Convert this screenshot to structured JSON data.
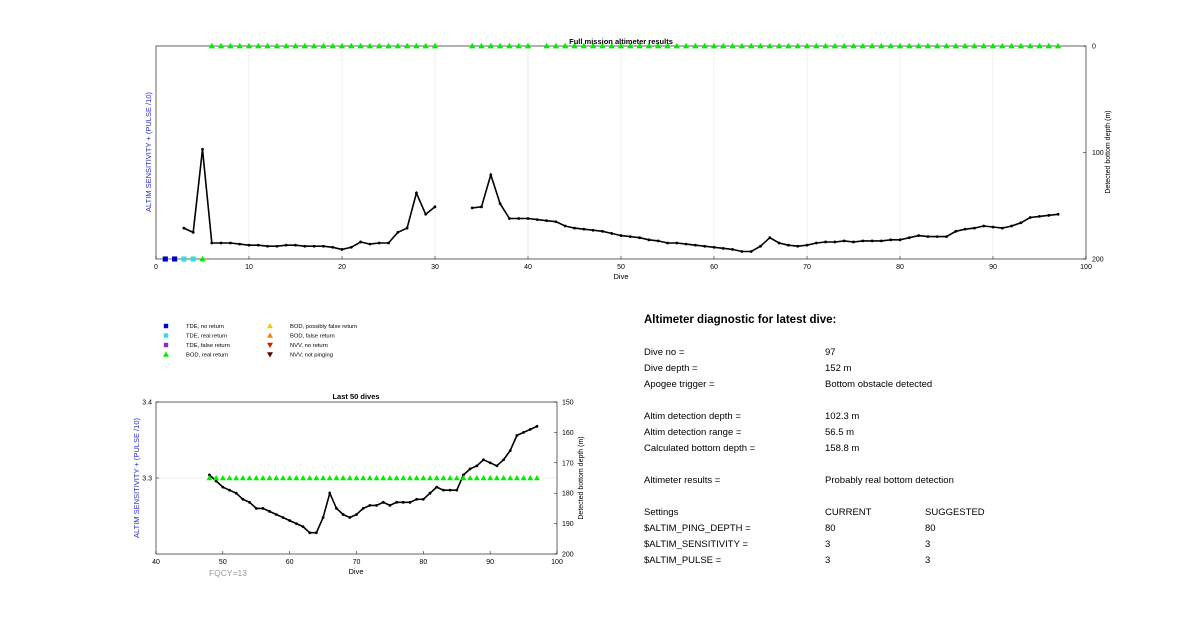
{
  "chart_data": [
    {
      "type": "line",
      "title": "Full mission altimeter results",
      "xlabel": "Dive",
      "ylabel_left": "ALTIM SENSITIVITY + (PULSE /10)",
      "ylabel_right": "Detected bottom depth (m)",
      "xlim": [
        0,
        100
      ],
      "xticks": [
        "0",
        "10",
        "20",
        "30",
        "40",
        "50",
        "60",
        "70",
        "80",
        "90",
        "100"
      ],
      "y_right_lim": [
        0,
        200
      ],
      "y_right_reversed": true,
      "y_right_ticks": [
        "0",
        "100",
        "200"
      ],
      "grid": "x",
      "series": [
        {
          "marker": "line-with-points",
          "axis": "right",
          "color": "#000000",
          "points": [
            [
              3,
              171
            ],
            [
              4,
              175
            ],
            [
              5,
              97
            ],
            [
              6,
              185
            ],
            [
              7,
              185
            ],
            [
              8,
              185
            ],
            [
              9,
              186
            ],
            [
              10,
              187
            ],
            [
              11,
              187
            ],
            [
              12,
              188
            ],
            [
              13,
              188
            ],
            [
              14,
              187
            ],
            [
              15,
              187
            ],
            [
              16,
              188
            ],
            [
              17,
              188
            ],
            [
              18,
              188
            ],
            [
              19,
              189
            ],
            [
              20,
              191
            ],
            [
              21,
              189
            ],
            [
              22,
              184
            ],
            [
              23,
              186
            ],
            [
              24,
              185
            ],
            [
              25,
              185
            ],
            [
              26,
              175
            ],
            [
              27,
              171
            ],
            [
              28,
              138
            ],
            [
              29,
              158
            ],
            [
              30,
              151
            ],
            [
              34,
              152
            ],
            [
              35,
              151
            ],
            [
              36,
              121
            ],
            [
              37,
              148
            ],
            [
              38,
              162
            ],
            [
              39,
              162
            ],
            [
              40,
              162
            ],
            [
              41,
              163
            ],
            [
              42,
              164
            ],
            [
              43,
              165
            ],
            [
              44,
              169
            ],
            [
              45,
              171
            ],
            [
              46,
              172
            ],
            [
              47,
              173
            ],
            [
              48,
              174
            ],
            [
              49,
              176
            ],
            [
              50,
              178
            ],
            [
              51,
              179
            ],
            [
              52,
              180
            ],
            [
              53,
              182
            ],
            [
              54,
              183
            ],
            [
              55,
              185
            ],
            [
              56,
              185
            ],
            [
              57,
              186
            ],
            [
              58,
              187
            ],
            [
              59,
              188
            ],
            [
              60,
              189
            ],
            [
              61,
              190
            ],
            [
              62,
              191
            ],
            [
              63,
              193
            ],
            [
              64,
              193
            ],
            [
              65,
              188
            ],
            [
              66,
              180
            ],
            [
              67,
              185
            ],
            [
              68,
              187
            ],
            [
              69,
              188
            ],
            [
              70,
              187
            ],
            [
              71,
              185
            ],
            [
              72,
              184
            ],
            [
              73,
              184
            ],
            [
              74,
              183
            ],
            [
              75,
              184
            ],
            [
              76,
              183
            ],
            [
              77,
              183
            ],
            [
              78,
              183
            ],
            [
              79,
              182
            ],
            [
              80,
              182
            ],
            [
              81,
              180
            ],
            [
              82,
              178
            ],
            [
              83,
              179
            ],
            [
              84,
              179
            ],
            [
              85,
              179
            ],
            [
              86,
              174
            ],
            [
              87,
              172
            ],
            [
              88,
              171
            ],
            [
              89,
              169
            ],
            [
              90,
              170
            ],
            [
              91,
              171
            ],
            [
              92,
              169
            ],
            [
              93,
              166
            ],
            [
              94,
              161
            ],
            [
              95,
              160
            ],
            [
              96,
              159
            ],
            [
              97,
              158
            ]
          ]
        },
        {
          "name": "BOD, real return",
          "marker": "triangle-up",
          "color": "#00ee00",
          "y_value_right": 0,
          "dives": [
            6,
            7,
            8,
            9,
            10,
            11,
            12,
            13,
            14,
            15,
            16,
            17,
            18,
            19,
            20,
            21,
            22,
            23,
            24,
            25,
            26,
            27,
            28,
            29,
            30,
            34,
            35,
            36,
            37,
            38,
            39,
            40,
            42,
            43,
            44,
            45,
            46,
            47,
            48,
            49,
            50,
            51,
            52,
            53,
            54,
            55,
            56,
            57,
            58,
            59,
            60,
            61,
            62,
            63,
            64,
            65,
            66,
            67,
            68,
            69,
            70,
            71,
            72,
            73,
            74,
            75,
            76,
            77,
            78,
            79,
            80,
            81,
            82,
            83,
            84,
            85,
            86,
            87,
            88,
            89,
            90,
            91,
            92,
            93,
            94,
            95,
            96,
            97
          ]
        },
        {
          "name": "TDE, no return",
          "marker": "square",
          "color": "#0000cc",
          "y_value_right": 200,
          "dives": [
            1,
            2
          ]
        },
        {
          "name": "TDE, real return",
          "marker": "square",
          "color": "#33dddd",
          "y_value_right": 200,
          "dives": [
            3,
            4
          ]
        },
        {
          "name": "BOD, real return",
          "marker": "triangle-up",
          "color": "#00ee00",
          "y_value_right": 200,
          "dives": [
            5
          ]
        }
      ]
    },
    {
      "type": "line",
      "title": "Last 50 dives",
      "xlabel": "Dive",
      "ylabel_left": "ALTIM SENSITIVITY + (PULSE /10)",
      "ylabel_right": "Detected bottom depth (m)",
      "xlim": [
        40,
        100
      ],
      "xticks": [
        "40",
        "50",
        "60",
        "70",
        "80",
        "90",
        "100"
      ],
      "ylim_left": [
        3.2,
        3.4
      ],
      "y_left_ticks": [
        "3.3",
        "3.4"
      ],
      "y_right_lim": [
        150,
        200
      ],
      "y_right_reversed": true,
      "y_right_ticks": [
        "150",
        "160",
        "170",
        "180",
        "190",
        "200"
      ],
      "annotation": "FQCY=13",
      "series": [
        {
          "marker": "line-with-points",
          "axis": "right",
          "color": "#000000",
          "points": [
            [
              48,
              174
            ],
            [
              49,
              176
            ],
            [
              50,
              178
            ],
            [
              51,
              179
            ],
            [
              52,
              180
            ],
            [
              53,
              182
            ],
            [
              54,
              183
            ],
            [
              55,
              185
            ],
            [
              56,
              185
            ],
            [
              57,
              186
            ],
            [
              58,
              187
            ],
            [
              59,
              188
            ],
            [
              60,
              189
            ],
            [
              61,
              190
            ],
            [
              62,
              191
            ],
            [
              63,
              193
            ],
            [
              64,
              193
            ],
            [
              65,
              188
            ],
            [
              66,
              180
            ],
            [
              67,
              185
            ],
            [
              68,
              187
            ],
            [
              69,
              188
            ],
            [
              70,
              187
            ],
            [
              71,
              185
            ],
            [
              72,
              184
            ],
            [
              73,
              184
            ],
            [
              74,
              183
            ],
            [
              75,
              184
            ],
            [
              76,
              183
            ],
            [
              77,
              183
            ],
            [
              78,
              183
            ],
            [
              79,
              182
            ],
            [
              80,
              182
            ],
            [
              81,
              180
            ],
            [
              82,
              178
            ],
            [
              83,
              179
            ],
            [
              84,
              179
            ],
            [
              85,
              179
            ],
            [
              86,
              174
            ],
            [
              87,
              172
            ],
            [
              88,
              171
            ],
            [
              89,
              169
            ],
            [
              90,
              170
            ],
            [
              91,
              171
            ],
            [
              92,
              169
            ],
            [
              93,
              166
            ],
            [
              94,
              161
            ],
            [
              95,
              160
            ],
            [
              96,
              159
            ],
            [
              97,
              158
            ]
          ]
        },
        {
          "name": "BOD, real return",
          "marker": "triangle-up",
          "color": "#00ee00",
          "y_value_left": 3.3,
          "dives": [
            48,
            49,
            50,
            51,
            52,
            53,
            54,
            55,
            56,
            57,
            58,
            59,
            60,
            61,
            62,
            63,
            64,
            65,
            66,
            67,
            68,
            69,
            70,
            71,
            72,
            73,
            74,
            75,
            76,
            77,
            78,
            79,
            80,
            81,
            82,
            83,
            84,
            85,
            86,
            87,
            88,
            89,
            90,
            91,
            92,
            93,
            94,
            95,
            96,
            97
          ]
        }
      ]
    }
  ],
  "legend": [
    {
      "label": "TDE, no return",
      "marker": "square",
      "color": "#0000cc"
    },
    {
      "label": "TDE, real return",
      "marker": "square",
      "color": "#33dddd"
    },
    {
      "label": "TDE, false return",
      "marker": "square",
      "color": "#7733cc"
    },
    {
      "label": "BOD, real return",
      "marker": "triangle-up",
      "color": "#00ee00"
    },
    {
      "label": "BOD, possibly false return",
      "marker": "triangle-up",
      "color": "#eecc00"
    },
    {
      "label": "BOD, false return",
      "marker": "triangle-up",
      "color": "#ee8800"
    },
    {
      "label": "NVV, no return",
      "marker": "triangle-down",
      "color": "#cc2200"
    },
    {
      "label": "NVV, not pinging",
      "marker": "triangle-down",
      "color": "#660000"
    }
  ],
  "diagnostic": {
    "title": "Altimeter diagnostic for latest dive:",
    "dive_no_label": "Dive no =",
    "dive_no": "97",
    "dive_depth_label": "Dive depth =",
    "dive_depth": "152 m",
    "apogee_label": "Apogee trigger =",
    "apogee": "Bottom obstacle detected",
    "detect_depth_label": "Altim detection depth =",
    "detect_depth": "102.3 m",
    "detect_range_label": "Altim detection range =",
    "detect_range": "56.5 m",
    "calc_bottom_label": "Calculated bottom depth =",
    "calc_bottom": "158.8 m",
    "results_label": "Altimeter results =",
    "results": "Probably real bottom detection",
    "settings_label": "Settings",
    "current_label": "CURRENT",
    "suggested_label": "SUGGESTED",
    "ping_depth_label": "$ALTIM_PING_DEPTH =",
    "ping_depth_current": "80",
    "ping_depth_suggested": "80",
    "sensitivity_label": "$ALTIM_SENSITIVITY =",
    "sensitivity_current": "3",
    "sensitivity_suggested": "3",
    "pulse_label": "$ALTIM_PULSE =",
    "pulse_current": "3",
    "pulse_suggested": "3"
  }
}
